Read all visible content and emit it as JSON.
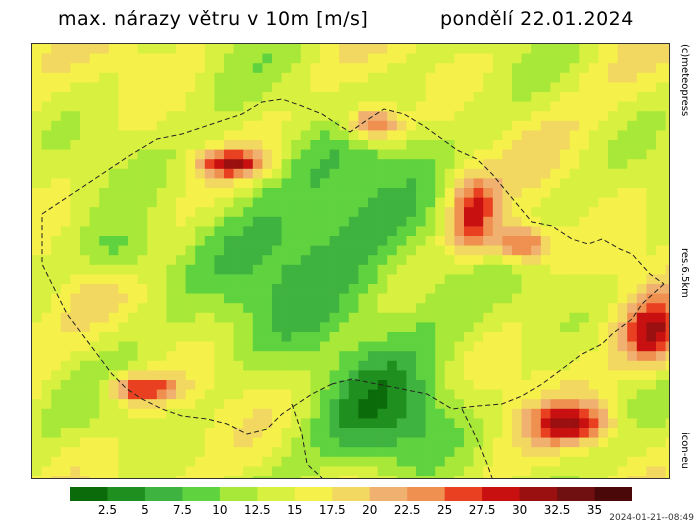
{
  "title": {
    "left": "max. nárazy větru v 10m [m/s]",
    "right": "pondělí 22.01.2024"
  },
  "side_labels": {
    "copyright": "(c)meteopress",
    "resolution": "res.6.5km",
    "model": "icon-eu"
  },
  "legend": {
    "labels": [
      "2.5",
      "5",
      "7.5",
      "10",
      "12.5",
      "15",
      "17.5",
      "20",
      "22.5",
      "25",
      "27.5",
      "30",
      "32.5",
      "35"
    ],
    "colors": [
      "#0b6b0b",
      "#1f8f1f",
      "#3fb33f",
      "#5fd33f",
      "#a8e838",
      "#d8f040",
      "#f5f04a",
      "#f2d860",
      "#f0b070",
      "#f09050",
      "#e84020",
      "#c81010",
      "#9a1010",
      "#701010",
      "#4a0808"
    ]
  },
  "timestamp": "2024-01-21--08:49"
}
